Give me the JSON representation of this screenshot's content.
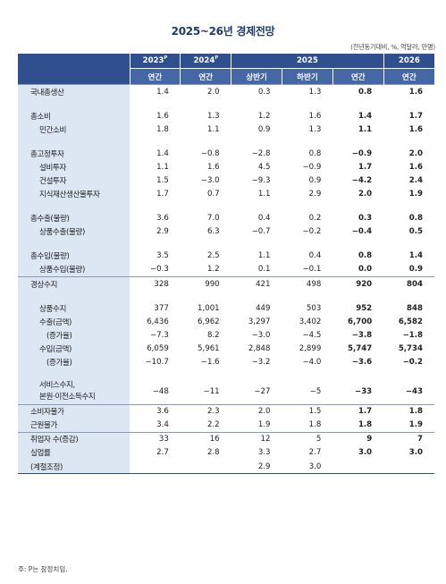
{
  "title": "2025~26년 경제전망",
  "unit": "(전년동기대비, %, 억달러, 만명)",
  "header": {
    "y2023": "2023",
    "y2024": "2024",
    "y2025": "2025",
    "y2026": "2026",
    "p": "P",
    "annual": "연간",
    "h1": "상반기",
    "h2": "하반기"
  },
  "rows": [
    {
      "label": "국내총생산",
      "v": [
        "1.4",
        "2.0",
        "0.3",
        "1.3",
        "0.8",
        "1.6"
      ]
    },
    {
      "label": "총소비",
      "v": [
        "1.6",
        "1.3",
        "1.2",
        "1.6",
        "1.4",
        "1.7"
      ]
    },
    {
      "label": "민간소비",
      "v": [
        "1.8",
        "1.1",
        "0.9",
        "1.3",
        "1.1",
        "1.6"
      ]
    },
    {
      "label": "총고정투자",
      "v": [
        "1.4",
        "−0.8",
        "−2.8",
        "0.8",
        "−0.9",
        "2.0"
      ]
    },
    {
      "label": "설비투자",
      "v": [
        "1.1",
        "1.6",
        "4.5",
        "−0.9",
        "1.7",
        "1.6"
      ]
    },
    {
      "label": "건설투자",
      "v": [
        "1.5",
        "−3.0",
        "−9.3",
        "0.9",
        "−4.2",
        "2.4"
      ]
    },
    {
      "label": "지식재산생산물투자",
      "v": [
        "1.7",
        "0.7",
        "1.1",
        "2.9",
        "2.0",
        "1.9"
      ]
    },
    {
      "label": "총수출(물량)",
      "v": [
        "3.6",
        "7.0",
        "0.4",
        "0.2",
        "0.3",
        "0.8"
      ]
    },
    {
      "label": "상품수출(물량)",
      "v": [
        "2.9",
        "6.3",
        "−0.7",
        "−0.2",
        "−0.4",
        "0.5"
      ]
    },
    {
      "label": "총수입(물량)",
      "v": [
        "3.5",
        "2.5",
        "1.1",
        "0.4",
        "0.8",
        "1.4"
      ]
    },
    {
      "label": "상품수입(물량)",
      "v": [
        "−0.3",
        "1.2",
        "0.1",
        "−0.1",
        "0.0",
        "0.9"
      ]
    },
    {
      "label": "경상수지",
      "v": [
        "328",
        "990",
        "421",
        "498",
        "920",
        "804"
      ]
    },
    {
      "label": "상품수지",
      "v": [
        "377",
        "1,001",
        "449",
        "503",
        "952",
        "848"
      ]
    },
    {
      "label": "수출(금액)",
      "v": [
        "6,436",
        "6,962",
        "3,297",
        "3,402",
        "6,700",
        "6,582"
      ]
    },
    {
      "label": "(증가율)",
      "v": [
        "−7.3",
        "8.2",
        "−3.0",
        "−4.5",
        "−3.8",
        "−1.8"
      ]
    },
    {
      "label": "수입(금액)",
      "v": [
        "6,059",
        "5,961",
        "2,848",
        "2,899",
        "5,747",
        "5,734"
      ]
    },
    {
      "label": "(증가율)",
      "v": [
        "−10.7",
        "−1.6",
        "−3.2",
        "−4.0",
        "−3.6",
        "−0.2"
      ]
    },
    {
      "label": "서비스수지,",
      "label2": "본원·이전소득수지",
      "v": [
        "−48",
        "−11",
        "−27",
        "−5",
        "−33",
        "−43"
      ]
    },
    {
      "label": "소비자물가",
      "v": [
        "3.6",
        "2.3",
        "2.0",
        "1.5",
        "1.7",
        "1.8"
      ]
    },
    {
      "label": "근원물가",
      "v": [
        "3.4",
        "2.2",
        "1.9",
        "1.8",
        "1.8",
        "1.9"
      ]
    },
    {
      "label": "취업자 수(증감)",
      "v": [
        "33",
        "16",
        "12",
        "5",
        "9",
        "7"
      ]
    },
    {
      "label": "실업률",
      "v": [
        "2.7",
        "2.8",
        "3.3",
        "2.7",
        "3.0",
        "3.0"
      ]
    },
    {
      "label": "(계절조정)",
      "v": [
        "",
        "",
        "2.9",
        "3.0",
        "",
        ""
      ]
    }
  ],
  "note": "주: P는 잠정치임."
}
